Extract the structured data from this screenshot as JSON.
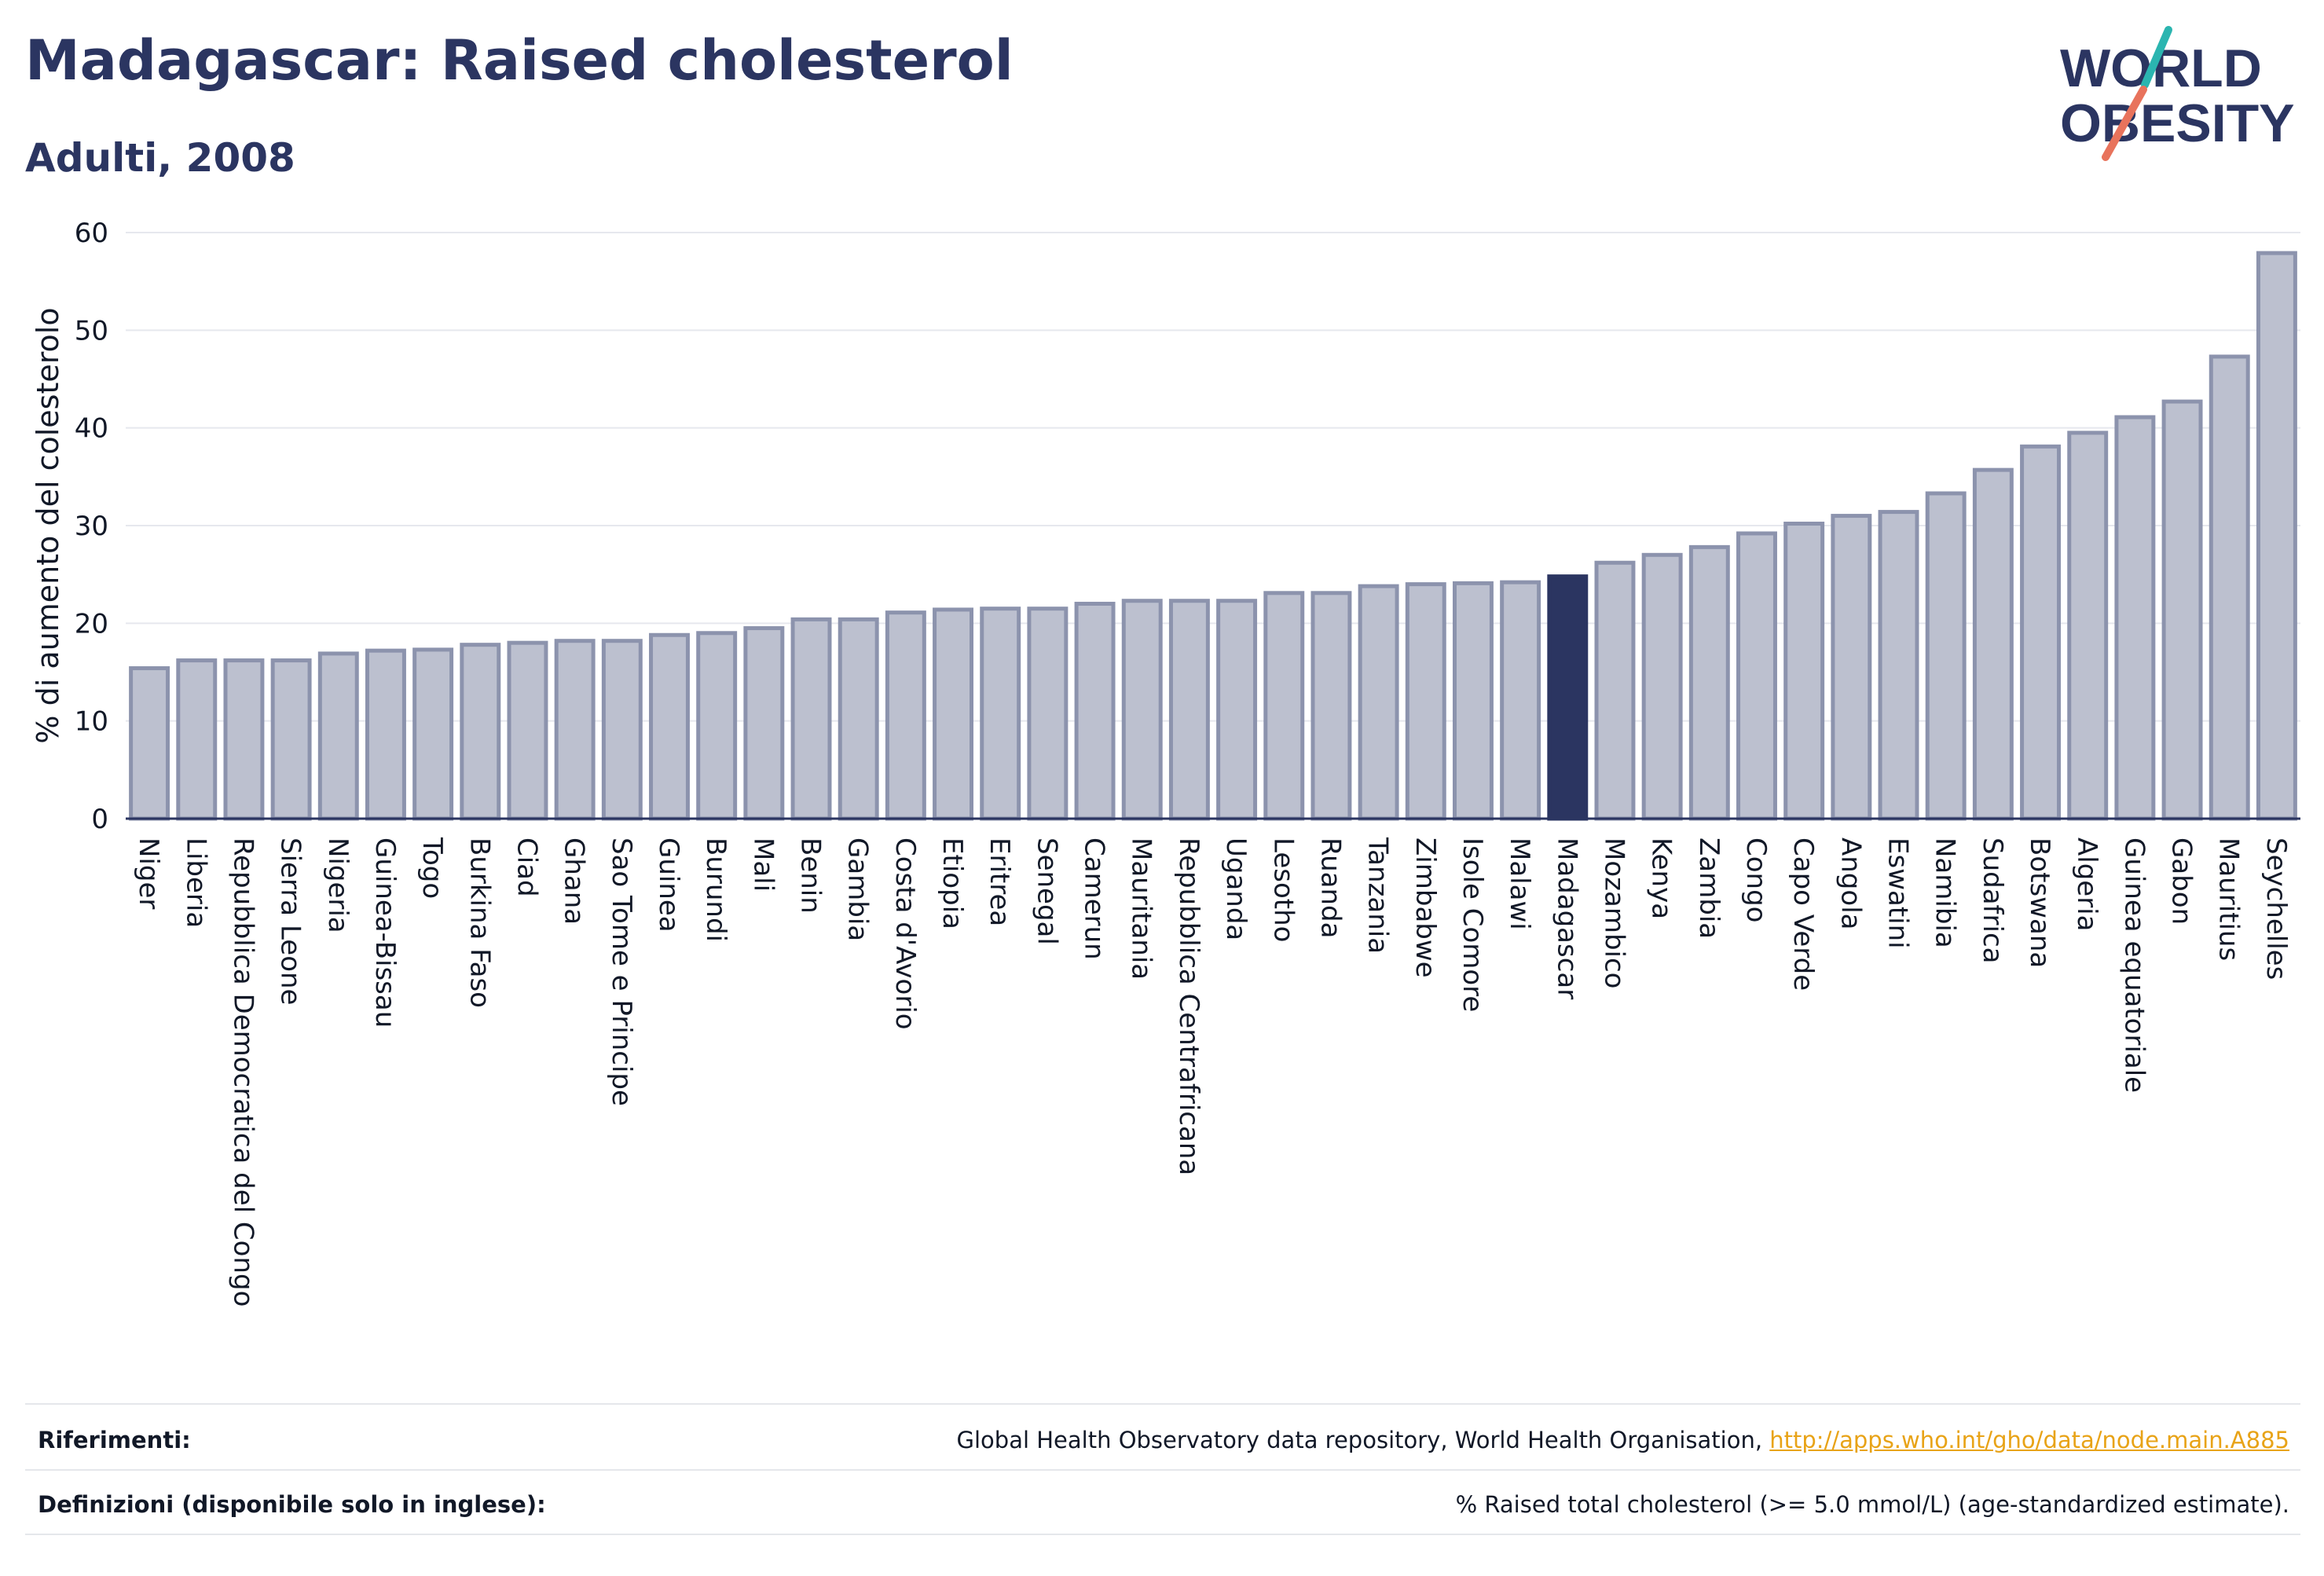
{
  "header": {
    "title": "Madagascar: Raised cholesterol",
    "subtitle": "Adulti, 2008"
  },
  "logo": {
    "line1": "WORLD",
    "line2": "OBESITY",
    "navy": "#2b3561",
    "teal": "#2bb5b0",
    "coral": "#e8735c"
  },
  "footer": {
    "references_label": "Riferimenti:",
    "references_text": "Global Health Observatory data repository, World Health Organisation, ",
    "references_link": "http://apps.who.int/gho/data/node.main.A885",
    "definitions_label": "Definizioni (disponibile solo in inglese):",
    "definitions_text": "% Raised total cholesterol (>= 5.0 mmol/L) (age-standardized estimate)."
  },
  "chart_data": {
    "type": "bar",
    "ylabel": "% di aumento del colesterolo",
    "xlabel": "",
    "ylim": [
      0,
      60
    ],
    "yticks": [
      0,
      10,
      20,
      30,
      40,
      50,
      60
    ],
    "grid": true,
    "highlight": "Madagascar",
    "bar_color": "#bcc0cf",
    "bar_border_color": "#8c93ad",
    "highlight_color": "#2b3561",
    "categories": [
      "Niger",
      "Liberia",
      "Repubblica Democratica del Congo",
      "Sierra Leone",
      "Nigeria",
      "Guinea-Bissau",
      "Togo",
      "Burkina Faso",
      "Ciad",
      "Ghana",
      "Sao Tome e Principe",
      "Guinea",
      "Burundi",
      "Mali",
      "Benin",
      "Gambia",
      "Costa d'Avorio",
      "Etiopia",
      "Eritrea",
      "Senegal",
      "Camerun",
      "Mauritania",
      "Repubblica Centrafricana",
      "Uganda",
      "Lesotho",
      "Ruanda",
      "Tanzania",
      "Zimbabwe",
      "Isole Comore",
      "Malawi",
      "Madagascar",
      "Mozambico",
      "Kenya",
      "Zambia",
      "Congo",
      "Capo Verde",
      "Angola",
      "Eswatini",
      "Namibia",
      "Sudafrica",
      "Botswana",
      "Algeria",
      "Guinea equatoriale",
      "Gabon",
      "Mauritius",
      "Seychelles"
    ],
    "values": [
      15.4,
      16.2,
      16.2,
      16.2,
      16.9,
      17.2,
      17.3,
      17.8,
      18.0,
      18.2,
      18.2,
      18.8,
      19.0,
      19.5,
      20.4,
      20.4,
      21.1,
      21.4,
      21.5,
      21.5,
      22.0,
      22.3,
      22.3,
      22.3,
      23.1,
      23.1,
      23.8,
      24.0,
      24.1,
      24.2,
      24.8,
      26.2,
      27.0,
      27.8,
      29.2,
      30.2,
      31.0,
      31.4,
      33.3,
      35.7,
      38.1,
      39.5,
      41.1,
      42.7,
      47.3,
      57.9
    ]
  }
}
